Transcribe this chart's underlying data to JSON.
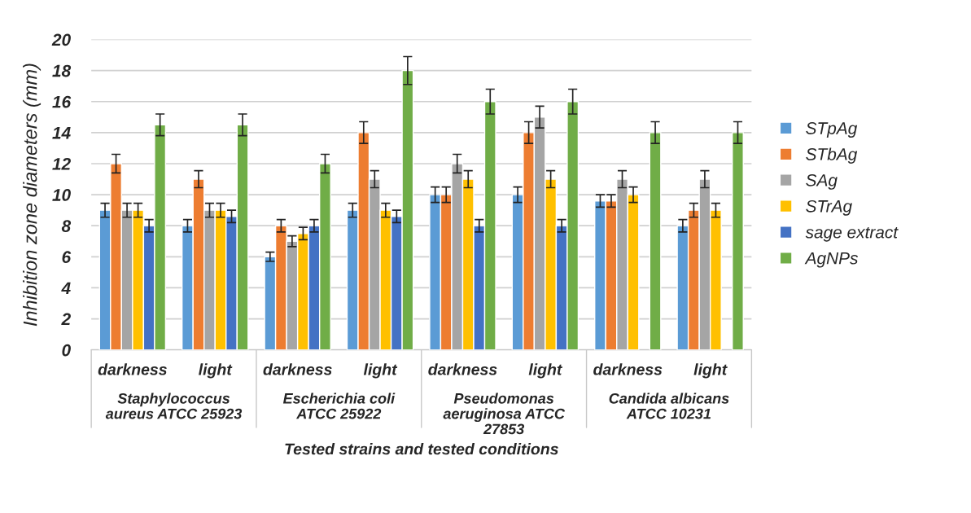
{
  "chart_data": {
    "type": "bar",
    "xlabel": "Tested strains and tested conditions",
    "ylabel": "Inhibition zone diameters (mm)",
    "categories": [
      "darkness",
      "light",
      "darkness",
      "light",
      "darkness",
      "light",
      "darkness",
      "light"
    ],
    "annotations": [
      "Staphylococcus\naureus ATCC 25923",
      "Escherichia coli\nATCC 25922",
      "Pseudomonas\naeruginosa ATCC\n27853",
      "Candida albicans\nATCC 10231"
    ],
    "series": [
      {
        "name": "STpAg",
        "color": "#5b9bd5",
        "values": [
          9,
          8,
          6,
          9,
          10,
          10,
          9.6,
          8
        ],
        "errors": [
          0.45,
          0.4,
          0.3,
          0.45,
          0.5,
          0.5,
          0.4,
          0.4
        ]
      },
      {
        "name": "STbAg",
        "color": "#ed7d31",
        "values": [
          12,
          11,
          8,
          14,
          10,
          14,
          9.6,
          9
        ],
        "errors": [
          0.6,
          0.55,
          0.4,
          0.7,
          0.5,
          0.7,
          0.4,
          0.45
        ]
      },
      {
        "name": "SAg",
        "color": "#a5a5a5",
        "values": [
          9,
          9,
          7,
          11,
          12,
          15,
          11,
          11
        ],
        "errors": [
          0.45,
          0.45,
          0.35,
          0.55,
          0.6,
          0.7,
          0.55,
          0.55
        ]
      },
      {
        "name": "STrAg",
        "color": "#ffc000",
        "values": [
          9,
          9,
          7.5,
          9,
          11,
          11,
          10,
          9
        ],
        "errors": [
          0.45,
          0.45,
          0.4,
          0.45,
          0.55,
          0.55,
          0.5,
          0.45
        ]
      },
      {
        "name": "sage extract",
        "color": "#4472c4",
        "values": [
          8,
          8.6,
          8,
          8.6,
          8,
          8,
          null,
          null
        ],
        "errors": [
          0.4,
          0.4,
          0.4,
          0.4,
          0.4,
          0.4,
          null,
          null
        ]
      },
      {
        "name": "AgNPs",
        "color": "#70ad47",
        "values": [
          14.5,
          14.5,
          12,
          18,
          16,
          16,
          14,
          14
        ],
        "errors": [
          0.7,
          0.7,
          0.6,
          0.9,
          0.8,
          0.8,
          0.7,
          0.7
        ]
      }
    ],
    "ylim": [
      0,
      20
    ],
    "yticks": [
      0,
      2,
      4,
      6,
      8,
      10,
      12,
      14,
      16,
      18,
      20
    ],
    "grid": "y",
    "legend": "right"
  }
}
